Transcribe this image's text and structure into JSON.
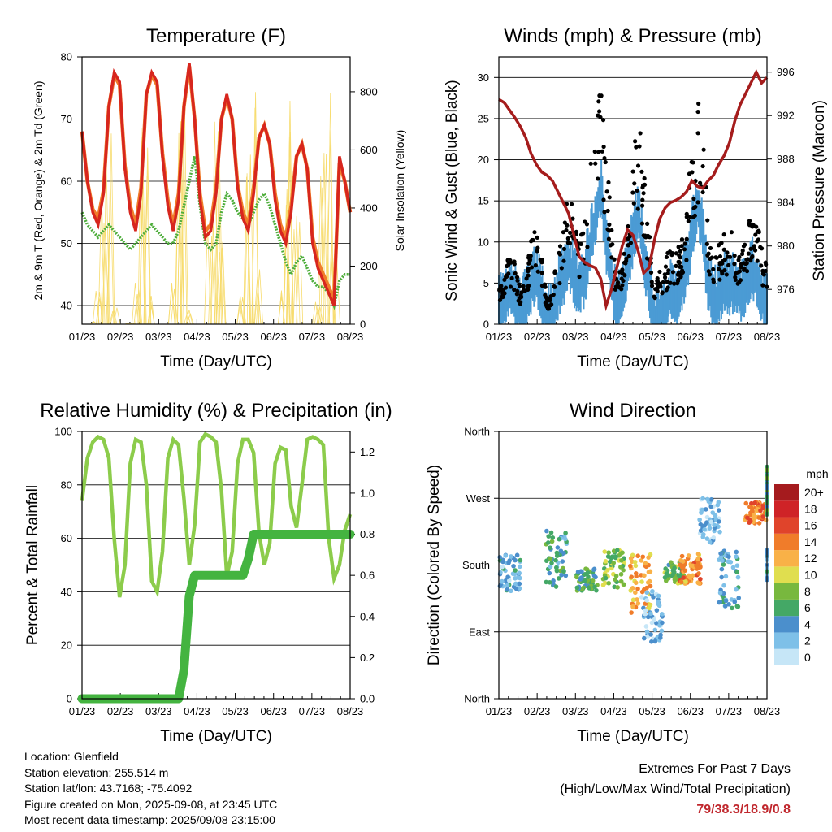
{
  "colors": {
    "temp_2m": "#d7261e",
    "temp_9m": "#f07c2a",
    "dewpoint": "#4fae3c",
    "solar": "#f7dc6f",
    "gust": "#000000",
    "wind": "#4b9bd4",
    "pressure": "#a51c1c",
    "rh": "#8ccc4b",
    "precip": "#44b440",
    "extremes_value": "#c0272d"
  },
  "x_ticks": [
    "01/23",
    "02/23",
    "03/23",
    "04/23",
    "05/23",
    "06/23",
    "07/23",
    "08/23"
  ],
  "chart_data": [
    {
      "type": "line",
      "title": "Temperature (F)",
      "xlabel": "Time (Day/UTC)",
      "ylabel": "2m & 9m T (Red, Orange) & 2m Td (Green)",
      "y2label": "Solar Insolation (Yellow)",
      "ylim": [
        37,
        80
      ],
      "yticks": [
        40,
        50,
        60,
        70,
        80
      ],
      "y2lim": [
        0,
        920
      ],
      "y2ticks": [
        0,
        200,
        400,
        600,
        800
      ],
      "series": [
        {
          "key": "t2m",
          "values": [
            68,
            60,
            55,
            53,
            58,
            72,
            77.5,
            76,
            62,
            55,
            52,
            58,
            74,
            77.5,
            76,
            64,
            56,
            52,
            57,
            72,
            79,
            70,
            57,
            51,
            52,
            58,
            70,
            74,
            70,
            59,
            54,
            52,
            58,
            67,
            69,
            66,
            57,
            52,
            50,
            55,
            64,
            66,
            62,
            50,
            46,
            44,
            42,
            40,
            64,
            60,
            55
          ]
        },
        {
          "key": "t9m",
          "values": [
            68,
            60,
            55.5,
            54,
            58.5,
            72,
            77,
            75.5,
            62.5,
            56,
            53,
            59,
            74,
            77,
            75.5,
            64.5,
            57,
            53,
            58,
            72,
            78.5,
            70,
            58,
            52,
            53,
            59,
            70,
            73.5,
            70,
            59.5,
            55,
            53,
            59,
            67,
            69,
            66,
            58,
            53,
            51,
            56,
            64,
            66,
            62,
            51,
            47,
            45,
            43,
            41,
            63,
            60,
            55
          ]
        },
        {
          "key": "td",
          "values": [
            55,
            53,
            52,
            51,
            52,
            53,
            52,
            51,
            50,
            49,
            50,
            51,
            52,
            53,
            52,
            51,
            50,
            50,
            52,
            56,
            60,
            64,
            56,
            50,
            49,
            50,
            55,
            58,
            57,
            55,
            54,
            53,
            55,
            57,
            58,
            56,
            53,
            50,
            47,
            45,
            47,
            48,
            46,
            44,
            43,
            43,
            42,
            40,
            44,
            45,
            45
          ]
        },
        {
          "key": "solar",
          "values": [
            0,
            0,
            10,
            120,
            500,
            700,
            60,
            0,
            0,
            5,
            150,
            720,
            800,
            100,
            0,
            0,
            0,
            200,
            700,
            850,
            50,
            0,
            0,
            0,
            400,
            760,
            300,
            0,
            0,
            0,
            100,
            550,
            800,
            200,
            0,
            0,
            0,
            120,
            600,
            880,
            400,
            0,
            0,
            0,
            80,
            780,
            900,
            300,
            0,
            0,
            0
          ]
        }
      ]
    },
    {
      "type": "line",
      "title": "Winds (mph) & Pressure (mb)",
      "xlabel": "Time (Day/UTC)",
      "ylabel": "Sonic Wind & Gust (Blue, Black)",
      "y2label": "Station Pressure (Maroon)",
      "ylim": [
        0,
        32.5
      ],
      "yticks": [
        0,
        5,
        10,
        15,
        20,
        25,
        30
      ],
      "y2lim": [
        972.8,
        997.4
      ],
      "y2ticks": [
        976,
        980,
        984,
        988,
        992,
        996
      ],
      "series": [
        {
          "key": "gust",
          "values": [
            5,
            6,
            8,
            7,
            4,
            6,
            10,
            13,
            8,
            3,
            4,
            8,
            11,
            15,
            12,
            9,
            12,
            18,
            22,
            28,
            20,
            12,
            5,
            8,
            13,
            20,
            25,
            18,
            11,
            4,
            6,
            7,
            9,
            8,
            10,
            14,
            20,
            27,
            22,
            12,
            7,
            9,
            10,
            11,
            10,
            8,
            10,
            13,
            12,
            9,
            7
          ]
        },
        {
          "key": "wind",
          "values": [
            2,
            3,
            5,
            4,
            1.5,
            3,
            5,
            6,
            4,
            1,
            2,
            4,
            6,
            8,
            6,
            5,
            6,
            10,
            13,
            17,
            10,
            6,
            2,
            4,
            7,
            11,
            14,
            9,
            5,
            1,
            2,
            3,
            4,
            3,
            5,
            7,
            11,
            15,
            12,
            5,
            3,
            4,
            5,
            5,
            5,
            4,
            5,
            7,
            6,
            4,
            3
          ]
        },
        {
          "key": "pressure",
          "values": [
            993.5,
            993.2,
            992.5,
            991.8,
            991,
            990,
            988.5,
            987.5,
            986.8,
            986.5,
            986,
            985,
            984,
            983,
            981,
            979,
            978.5,
            978.2,
            978,
            977,
            974.5,
            976,
            978,
            980,
            981.5,
            981,
            979.5,
            977.5,
            978,
            980.5,
            982.5,
            983.5,
            984,
            984.2,
            984.5,
            985,
            986,
            985.5,
            985.3,
            986,
            986.5,
            987.5,
            988.3,
            989.5,
            991.5,
            993,
            994,
            995,
            996,
            995,
            995.5
          ]
        }
      ]
    },
    {
      "type": "line",
      "title": "Relative Humidity (%) & Precipitation (in)",
      "xlabel": "Time (Day/UTC)",
      "ylabel": "Percent & Total Rainfall",
      "ylim": [
        0,
        100
      ],
      "yticks": [
        0,
        20,
        40,
        60,
        80,
        100
      ],
      "y2lim": [
        0,
        1.3
      ],
      "y2ticks": [
        "0.0",
        "0.2",
        "0.4",
        "0.6",
        "0.8",
        "1.0",
        "1.2"
      ],
      "series": [
        {
          "key": "rh",
          "values": [
            74,
            90,
            96,
            98,
            97,
            90,
            60,
            38,
            50,
            88,
            97,
            96,
            80,
            44,
            40,
            55,
            90,
            97,
            95,
            75,
            50,
            65,
            96,
            99,
            98,
            96,
            78,
            46,
            55,
            88,
            97,
            97,
            92,
            62,
            50,
            58,
            88,
            94,
            93,
            72,
            64,
            80,
            97,
            98,
            97,
            95,
            60,
            45,
            50,
            63,
            69
          ]
        },
        {
          "key": "precip",
          "values": [
            0,
            0,
            0,
            0,
            0,
            0,
            0,
            0,
            0,
            0,
            0,
            0,
            0,
            0,
            0,
            0,
            0,
            0,
            0,
            0.14,
            0.5,
            0.6,
            0.6,
            0.6,
            0.6,
            0.6,
            0.6,
            0.6,
            0.6,
            0.6,
            0.6,
            0.68,
            0.8,
            0.8,
            0.8,
            0.8,
            0.8,
            0.8,
            0.8,
            0.8,
            0.8,
            0.8,
            0.8,
            0.8,
            0.8,
            0.8,
            0.8,
            0.8,
            0.8,
            0.8,
            0.8
          ]
        }
      ]
    },
    {
      "type": "scatter",
      "title": "Wind Direction",
      "xlabel": "Time (Day/UTC)",
      "ylabel": "Direction (Colored By Speed)",
      "yticks": [
        "North",
        "East",
        "South",
        "West",
        "North"
      ],
      "colorbar_title": "mph",
      "colorbar_labels": [
        "0",
        "2",
        "4",
        "6",
        "8",
        "10",
        "12",
        "14",
        "16",
        "18",
        "20+"
      ],
      "colorbar_colors": [
        "#c6e6f7",
        "#7ec0e8",
        "#4b8fcc",
        "#44a866",
        "#78b83e",
        "#e0de4f",
        "#f9b147",
        "#f07c2a",
        "#e0442b",
        "#cf2327",
        "#a51b1e"
      ],
      "clusters": [
        {
          "x": 0.3,
          "dir": 170,
          "spread": 25,
          "speed": 3
        },
        {
          "x": 1.5,
          "dir": 190,
          "spread": 40,
          "speed": 5
        },
        {
          "x": 2.3,
          "dir": 160,
          "spread": 15,
          "speed": 6
        },
        {
          "x": 3.0,
          "dir": 175,
          "spread": 25,
          "speed": 8
        },
        {
          "x": 3.7,
          "dir": 155,
          "spread": 40,
          "speed": 12
        },
        {
          "x": 4.0,
          "dir": 110,
          "spread": 35,
          "speed": 2
        },
        {
          "x": 4.6,
          "dir": 170,
          "spread": 15,
          "speed": 7
        },
        {
          "x": 5.0,
          "dir": 175,
          "spread": 20,
          "speed": 13
        },
        {
          "x": 5.5,
          "dir": 240,
          "spread": 30,
          "speed": 2
        },
        {
          "x": 6.0,
          "dir": 160,
          "spread": 40,
          "speed": 4
        },
        {
          "x": 6.7,
          "dir": 250,
          "spread": 15,
          "speed": 14
        },
        {
          "x": 7.3,
          "dir": 180,
          "spread": 20,
          "speed": 3
        },
        {
          "x": 7.7,
          "dir": 280,
          "spread": 35,
          "speed": 6
        }
      ]
    }
  ],
  "info": {
    "location": "Location: Glenfield",
    "elevation": "Station elevation: 255.514 m",
    "latlon": "Station lat/lon: 43.7168; -75.4092",
    "created": "Figure created on Mon, 2025-09-08, at 23:45 UTC",
    "recent": "Most recent data timestamp: 2025/09/08 23:15:00"
  },
  "extremes": {
    "heading": "Extremes For Past 7 Days",
    "subheading": "(High/Low/Max Wind/Total Precipitation)",
    "value": "79/38.3/18.9/0.8"
  }
}
